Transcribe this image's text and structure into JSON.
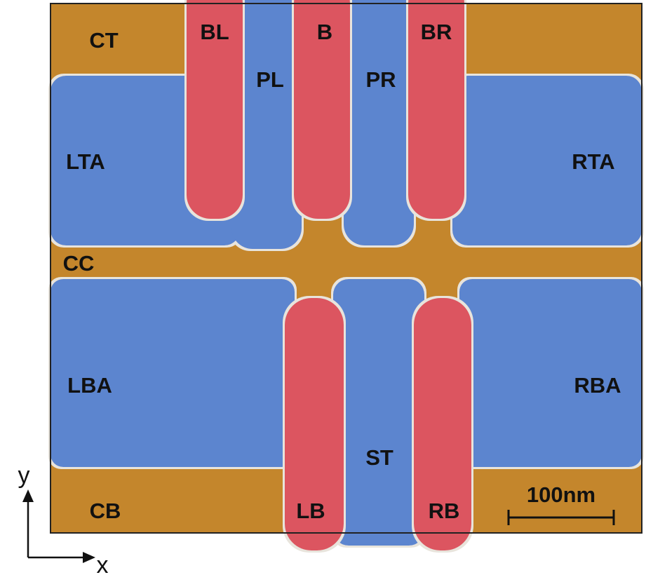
{
  "labels": [
    "CT",
    "BL",
    "B",
    "BR",
    "PL",
    "PR",
    "LTA",
    "RTA",
    "CC",
    "LBA",
    "RBA",
    "ST",
    "CB",
    "LB",
    "RB"
  ],
  "scale_bar": "100nm",
  "axes": {
    "y": "y",
    "x": "x"
  }
}
